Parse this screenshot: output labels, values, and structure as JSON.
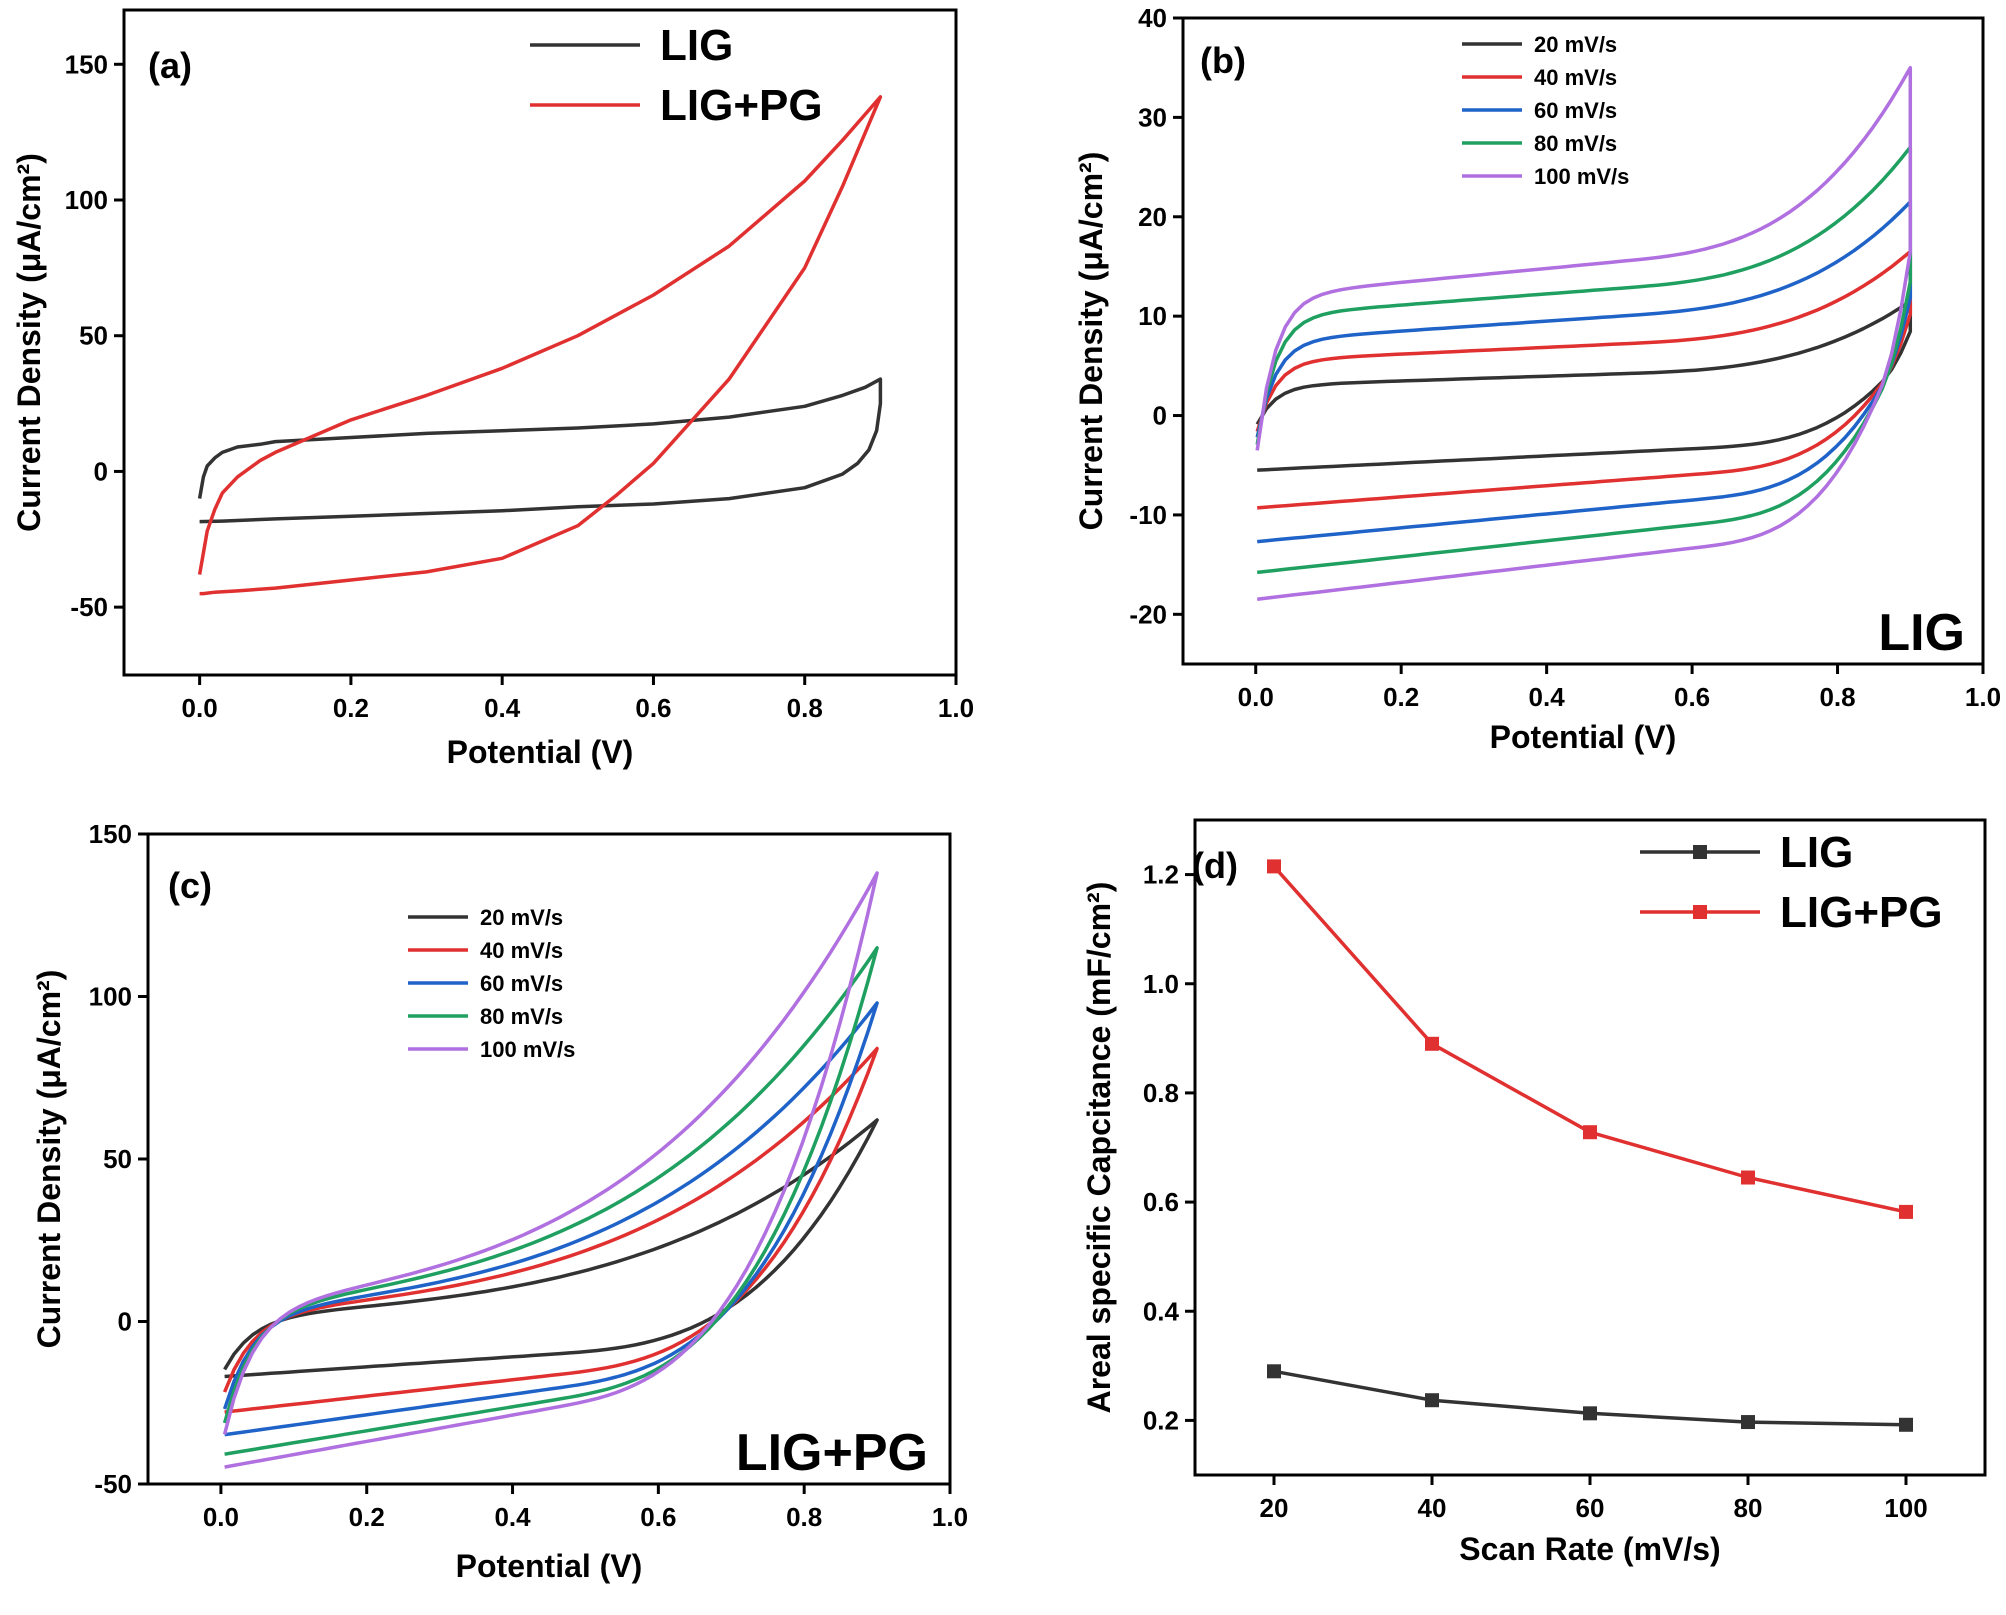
{
  "chart_data": [
    {
      "type": "line",
      "panel_label": "(a)",
      "xlabel": "Potential (V)",
      "ylabel": "Current Density (μA/cm²)",
      "xlim": [
        -0.1,
        1.0
      ],
      "ylim": [
        -75,
        170
      ],
      "xticks": [
        0.0,
        0.2,
        0.4,
        0.6,
        0.8,
        1.0
      ],
      "xtick_labels": [
        "0.0",
        "0.2",
        "0.4",
        "0.6",
        "0.8",
        "1.0"
      ],
      "yticks": [
        -50,
        0,
        50,
        100,
        150
      ],
      "ytick_labels": [
        "-50",
        "0",
        "50",
        "100",
        "150"
      ],
      "legend": "top-right",
      "series": [
        {
          "name": "LIG",
          "color": "#333333",
          "x": [
            0.0,
            0.005,
            0.01,
            0.02,
            0.03,
            0.05,
            0.08,
            0.1,
            0.2,
            0.3,
            0.4,
            0.5,
            0.6,
            0.7,
            0.75,
            0.8,
            0.85,
            0.88,
            0.9,
            0.9,
            0.895,
            0.885,
            0.87,
            0.85,
            0.8,
            0.7,
            0.6,
            0.5,
            0.4,
            0.3,
            0.2,
            0.1,
            0.03,
            0.0
          ],
          "y": [
            -10,
            -2,
            2,
            5,
            7,
            9,
            10,
            11,
            12.5,
            14,
            15,
            16,
            17.5,
            20,
            22,
            24,
            28,
            31,
            34,
            25,
            15,
            8,
            3,
            -1,
            -6,
            -10,
            -12,
            -13,
            -14.5,
            -15.5,
            -16.5,
            -17.5,
            -18.3,
            -18.5
          ]
        },
        {
          "name": "LIG+PG",
          "color": "#e03030",
          "x": [
            0.0,
            0.005,
            0.01,
            0.02,
            0.03,
            0.05,
            0.08,
            0.1,
            0.15,
            0.2,
            0.3,
            0.4,
            0.5,
            0.6,
            0.7,
            0.8,
            0.85,
            0.9,
            0.9,
            0.85,
            0.8,
            0.7,
            0.6,
            0.55,
            0.5,
            0.4,
            0.3,
            0.2,
            0.1,
            0.05,
            0.02,
            0.005,
            0.0
          ],
          "y": [
            -38,
            -30,
            -22,
            -14,
            -8,
            -2,
            4,
            7,
            13,
            19,
            28,
            38,
            50,
            65,
            83,
            107,
            122,
            138,
            138,
            105,
            75,
            34,
            3,
            -9,
            -20,
            -32,
            -37,
            -40,
            -43,
            -44,
            -44.5,
            -45,
            -45
          ]
        }
      ]
    },
    {
      "type": "line",
      "panel_label": "(b)",
      "annotation": "LIG",
      "xlabel": "Potential (V)",
      "ylabel": "Current Density (μA/cm²)",
      "xlim": [
        -0.1,
        1.0
      ],
      "ylim": [
        -25,
        40
      ],
      "xticks": [
        0.0,
        0.2,
        0.4,
        0.6,
        0.8,
        1.0
      ],
      "xtick_labels": [
        "0.0",
        "0.2",
        "0.4",
        "0.6",
        "0.8",
        "1.0"
      ],
      "yticks": [
        -20,
        -10,
        0,
        10,
        20,
        30,
        40
      ],
      "ytick_labels": [
        "-20",
        "-10",
        "0",
        "10",
        "20",
        "30",
        "40"
      ],
      "legend": "top-left",
      "series": [
        {
          "name": "20 mV/s",
          "color": "#333333",
          "top": [
            3.0,
            4.2,
            11.5
          ],
          "bottom": [
            -5.5,
            -3.7,
            9
          ]
        },
        {
          "name": "40 mV/s",
          "color": "#e03030",
          "top": [
            5.5,
            7.2,
            16.5
          ],
          "bottom": [
            -9.3,
            -6.5,
            12
          ]
        },
        {
          "name": "60 mV/s",
          "color": "#1f63c8",
          "top": [
            7.5,
            10.0,
            21.5
          ],
          "bottom": [
            -12.7,
            -9.2,
            15
          ]
        },
        {
          "name": "80 mV/s",
          "color": "#20a060",
          "top": [
            10.0,
            12.8,
            27.0
          ],
          "bottom": [
            -15.8,
            -11.8,
            18
          ]
        },
        {
          "name": "100 mV/s",
          "color": "#b070e0",
          "top": [
            12.0,
            15.5,
            35.0
          ],
          "bottom": [
            -18.5,
            -14.2,
            22
          ]
        }
      ]
    },
    {
      "type": "line",
      "panel_label": "(c)",
      "annotation": "LIG+PG",
      "xlabel": "Potential (V)",
      "ylabel": "Current Density (μA/cm²)",
      "xlim": [
        -0.1,
        1.0
      ],
      "ylim": [
        -50,
        150
      ],
      "xticks": [
        0.0,
        0.2,
        0.4,
        0.6,
        0.8,
        1.0
      ],
      "xtick_labels": [
        "0.0",
        "0.2",
        "0.4",
        "0.6",
        "0.8",
        "1.0"
      ],
      "yticks": [
        -50,
        0,
        50,
        100,
        150
      ],
      "ytick_labels": [
        "-50",
        "0",
        "50",
        "100",
        "150"
      ],
      "legend": "top-left",
      "series": [
        {
          "name": "20 mV/s",
          "color": "#333333",
          "peak": 62,
          "start": -17,
          "mid": 14,
          "low": -17
        },
        {
          "name": "40 mV/s",
          "color": "#e03030",
          "peak": 84,
          "start": -25,
          "mid": 20,
          "low": -28
        },
        {
          "name": "60 mV/s",
          "color": "#1f63c8",
          "peak": 98,
          "start": -31,
          "mid": 24,
          "low": -35
        },
        {
          "name": "80 mV/s",
          "color": "#20a060",
          "peak": 115,
          "start": -36,
          "mid": 30,
          "low": -41
        },
        {
          "name": "100 mV/s",
          "color": "#b070e0",
          "peak": 138,
          "start": -40,
          "mid": 34,
          "low": -45
        }
      ]
    },
    {
      "type": "line",
      "panel_label": "(d)",
      "xlabel": "Scan Rate (mV/s)",
      "ylabel": "Areal specific Capcitance (mF/cm²)",
      "xlim": [
        10,
        110
      ],
      "ylim": [
        0.1,
        1.3
      ],
      "xticks": [
        20,
        40,
        60,
        80,
        100
      ],
      "xtick_labels": [
        "20",
        "40",
        "60",
        "80",
        "100"
      ],
      "yticks": [
        0.2,
        0.4,
        0.6,
        0.8,
        1.0,
        1.2
      ],
      "ytick_labels": [
        "0.2",
        "0.4",
        "0.6",
        "0.8",
        "1.0",
        "1.2"
      ],
      "legend": "top-right",
      "series": [
        {
          "name": "LIG",
          "color": "#333333",
          "x": [
            20,
            40,
            60,
            80,
            100
          ],
          "y": [
            0.29,
            0.237,
            0.213,
            0.197,
            0.192
          ]
        },
        {
          "name": "LIG+PG",
          "color": "#e03030",
          "x": [
            20,
            40,
            60,
            80,
            100
          ],
          "y": [
            1.215,
            0.89,
            0.728,
            0.645,
            0.582
          ]
        }
      ]
    }
  ]
}
